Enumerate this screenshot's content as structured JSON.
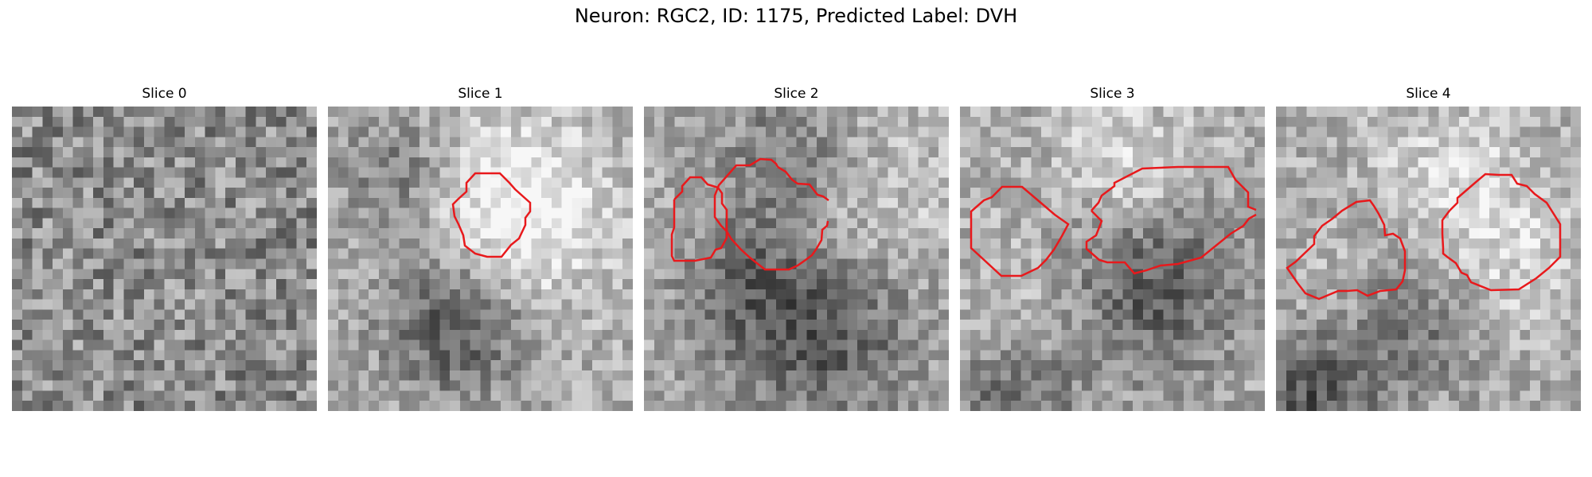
{
  "figure": {
    "title": "Neuron: RGC2, ID: 1175, Predicted Label: DVH"
  },
  "colors": {
    "contour": "#e8191c",
    "background": "#ffffff"
  },
  "slices": [
    {
      "label": "Slice 0",
      "seed": 11,
      "contours": 0
    },
    {
      "label": "Slice 1",
      "seed": 23,
      "contours": 1
    },
    {
      "label": "Slice 2",
      "seed": 37,
      "contours": 2
    },
    {
      "label": "Slice 3",
      "seed": 41,
      "contours": 2
    },
    {
      "label": "Slice 4",
      "seed": 59,
      "contours": 2
    }
  ]
}
